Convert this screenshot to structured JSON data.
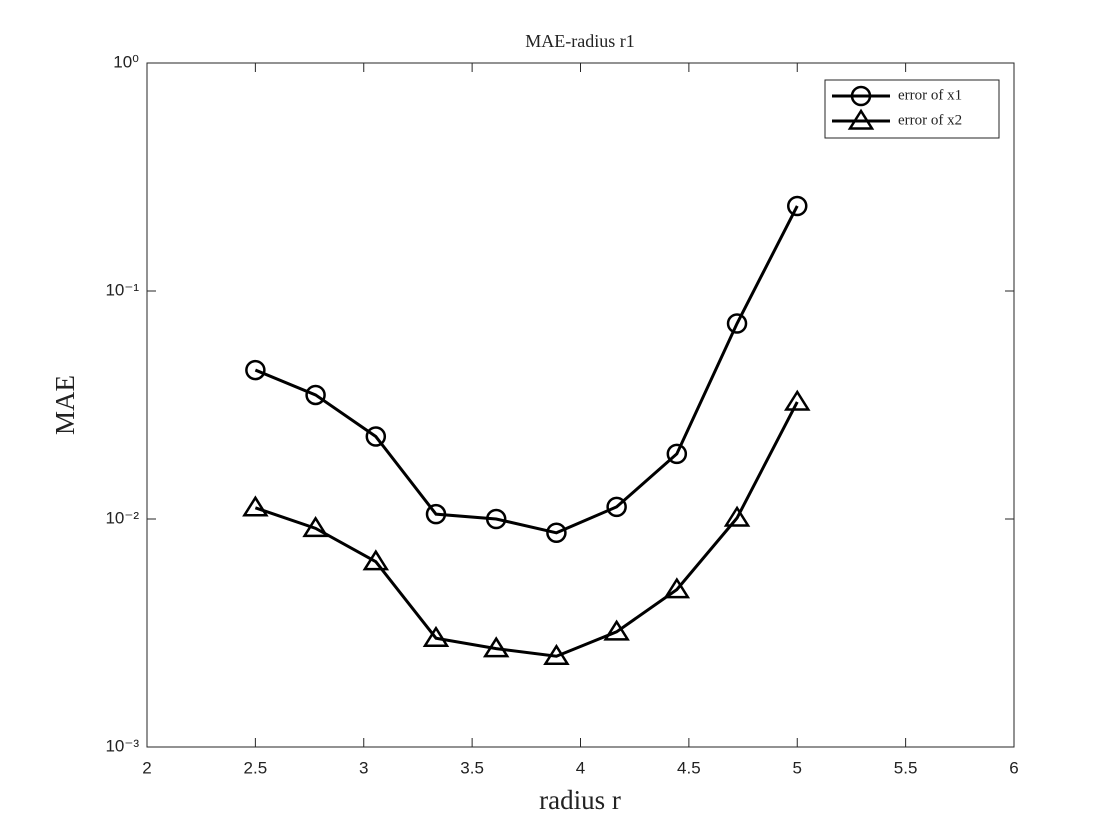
{
  "chart_data": {
    "type": "line",
    "title": "MAE-radius r1",
    "x_label": "radius r",
    "y_label": "MAE",
    "x": [
      2.5,
      2.7778,
      3.0556,
      3.3333,
      3.6111,
      3.8889,
      4.1667,
      4.4444,
      4.7222,
      5.0
    ],
    "series": [
      {
        "name": "error of x1",
        "color": "#000000",
        "marker": "circle",
        "values": [
          0.045,
          0.035,
          0.023,
          0.0105,
          0.01,
          0.0087,
          0.0113,
          0.0193,
          0.072,
          0.236
        ]
      },
      {
        "name": "error of x2",
        "color": "#000000",
        "marker": "triangle",
        "values": [
          0.0112,
          0.0091,
          0.0065,
          0.003,
          0.0027,
          0.0025,
          0.0032,
          0.0049,
          0.0101,
          0.0326
        ]
      }
    ],
    "xlim": [
      2,
      6
    ],
    "xticks": [
      2,
      2.5,
      3,
      3.5,
      4,
      4.5,
      5,
      5.5,
      6
    ],
    "ylim": [
      0.001,
      1
    ],
    "y_scale": "log",
    "yticks": [
      {
        "value": 0.001,
        "label": "10⁻³"
      },
      {
        "value": 0.01,
        "label": "10⁻²"
      },
      {
        "value": 0.1,
        "label": "10⁻¹"
      },
      {
        "value": 1,
        "label": "10⁰"
      }
    ],
    "legend": "top-right",
    "grid": false
  }
}
